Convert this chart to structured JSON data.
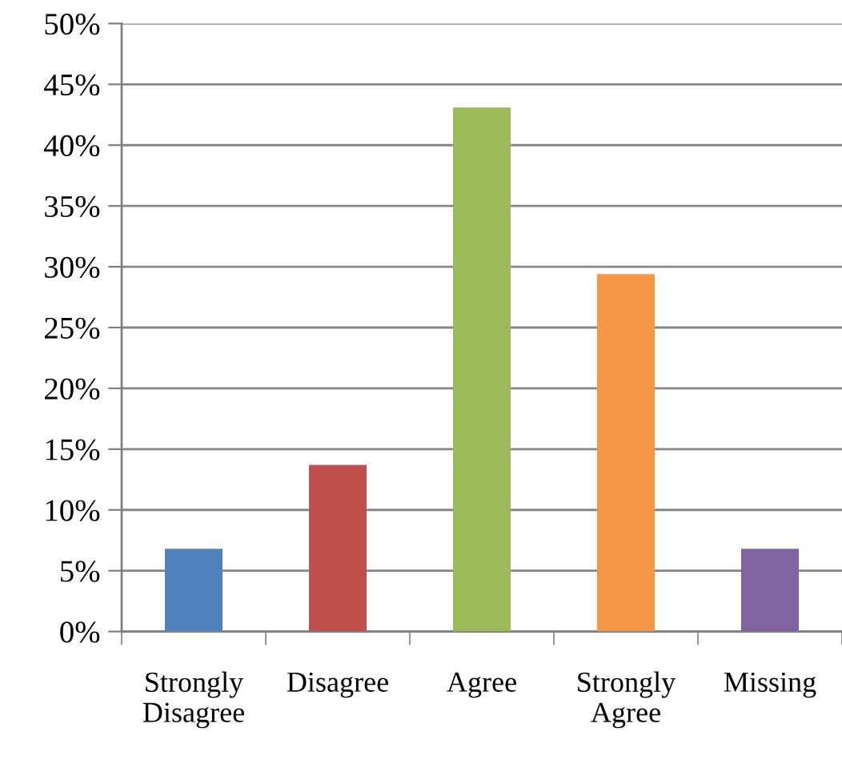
{
  "chart_data": {
    "type": "bar",
    "categories": [
      "Strongly\nDisagree",
      "Disagree",
      "Agree",
      "Strongly\nAgree",
      "Missing"
    ],
    "values": [
      6.8,
      13.7,
      43.1,
      29.4,
      6.8
    ],
    "colors": [
      "#4f81bd",
      "#c0504d",
      "#9bbb59",
      "#f79646",
      "#8064a2"
    ],
    "ylim": [
      0,
      50
    ],
    "yticks": [
      {
        "value": 0,
        "label": "0%"
      },
      {
        "value": 5,
        "label": "5%"
      },
      {
        "value": 10,
        "label": "10%"
      },
      {
        "value": 15,
        "label": "15%"
      },
      {
        "value": 20,
        "label": "20%"
      },
      {
        "value": 25,
        "label": "25%"
      },
      {
        "value": 30,
        "label": "30%"
      },
      {
        "value": 35,
        "label": "35%"
      },
      {
        "value": 40,
        "label": "40%"
      },
      {
        "value": 45,
        "label": "45%"
      },
      {
        "value": 50,
        "label": "50%"
      }
    ],
    "grid": "y"
  }
}
